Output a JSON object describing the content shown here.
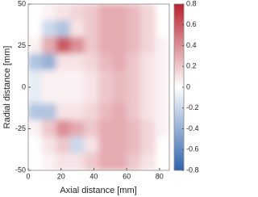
{
  "chart_data": {
    "type": "heatmap",
    "xlabel": "Axial distance [mm]",
    "ylabel": "Radial distance [mm]",
    "xbins": [
      0,
      8.6,
      17.2,
      25.8,
      34.4,
      43,
      51.6,
      60.2,
      68.8,
      77.4,
      86
    ],
    "ybins": [
      50,
      40,
      30,
      20,
      10,
      0,
      -10,
      -20,
      -30,
      -40,
      -50
    ],
    "values": [
      [
        0,
        0.05,
        0.1,
        0.15,
        0.2,
        0.3,
        0.3,
        0.25,
        0.15,
        null
      ],
      [
        0,
        -0.2,
        -0.3,
        0.1,
        0.2,
        0.3,
        0.3,
        0.25,
        0.15,
        null
      ],
      [
        0.05,
        0.3,
        0.6,
        0.4,
        0.2,
        0.3,
        0.3,
        0.25,
        0.15,
        0.05
      ],
      [
        -0.3,
        -0.4,
        0.1,
        0.1,
        0.15,
        0.25,
        0.3,
        0.2,
        0.1,
        0.05
      ],
      [
        -0.1,
        0.05,
        0.05,
        0.05,
        0.1,
        0.2,
        0.25,
        0.2,
        0.1,
        0.05
      ],
      [
        -0.1,
        0.05,
        0.05,
        0.05,
        0.1,
        0.2,
        0.25,
        0.2,
        0.1,
        0.05
      ],
      [
        -0.3,
        -0.3,
        0.1,
        0.1,
        0.15,
        0.25,
        0.3,
        0.2,
        0.1,
        0.05
      ],
      [
        0.05,
        0.2,
        0.4,
        0.3,
        0.2,
        0.3,
        0.3,
        0.25,
        0.15,
        0.05
      ],
      [
        0,
        0.1,
        0.2,
        -0.2,
        0.1,
        0.3,
        0.3,
        0.25,
        0.15,
        null
      ],
      [
        0,
        0.05,
        0.1,
        0.1,
        0.2,
        0.3,
        0.3,
        0.2,
        0.1,
        null
      ]
    ],
    "xlim": [
      0,
      86
    ],
    "xticks": [
      0,
      20,
      40,
      60,
      80
    ],
    "ylim": [
      -50,
      50
    ],
    "yticks": [
      -50,
      -25,
      0,
      25,
      50
    ],
    "clim": [
      -0.8,
      0.8
    ],
    "cticks": [
      -0.8,
      -0.6,
      -0.4,
      -0.2,
      0,
      0.2,
      0.4,
      0.6,
      0.8
    ],
    "colormap": [
      "#2f62ad",
      "#ffffff",
      "#b8202e"
    ]
  }
}
